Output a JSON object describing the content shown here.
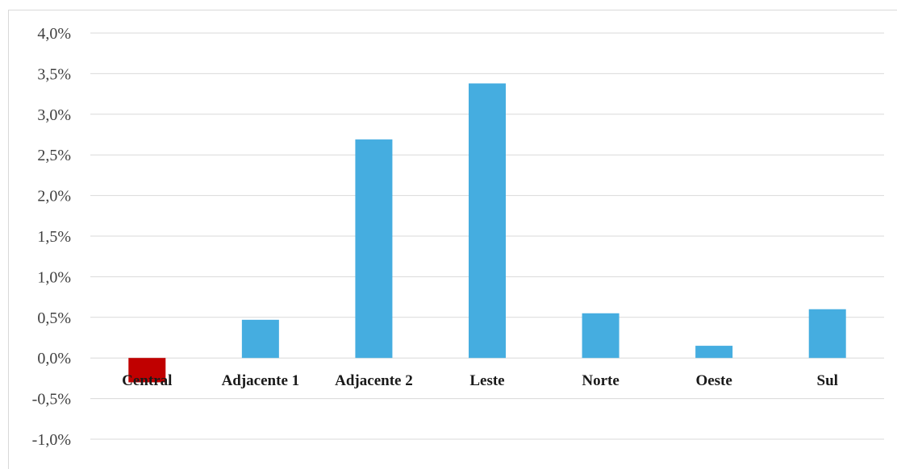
{
  "chart_data": {
    "type": "bar",
    "title": "",
    "xlabel": "",
    "ylabel": "",
    "categories": [
      "Central",
      "Adjacente 1",
      "Adjacente 2",
      "Leste",
      "Norte",
      "Oeste",
      "Sul"
    ],
    "values": [
      -0.3,
      0.47,
      2.69,
      3.38,
      0.55,
      0.15,
      0.6
    ],
    "ylim": [
      -1.0,
      4.0
    ],
    "yticks": [
      4.0,
      3.5,
      3.0,
      2.5,
      2.0,
      1.5,
      1.0,
      0.5,
      0.0,
      -0.5,
      -1.0
    ],
    "ytick_labels": [
      "4,0%",
      "3,5%",
      "3,0%",
      "2,5%",
      "2,0%",
      "1,5%",
      "1,0%",
      "0,5%",
      "0,0%",
      "-0,5%",
      "-1,0%"
    ],
    "grid": true,
    "legend": "none",
    "colors": {
      "positive": "#45ADE0",
      "negative": "#C00000",
      "grid": "#D9D9D9"
    }
  }
}
